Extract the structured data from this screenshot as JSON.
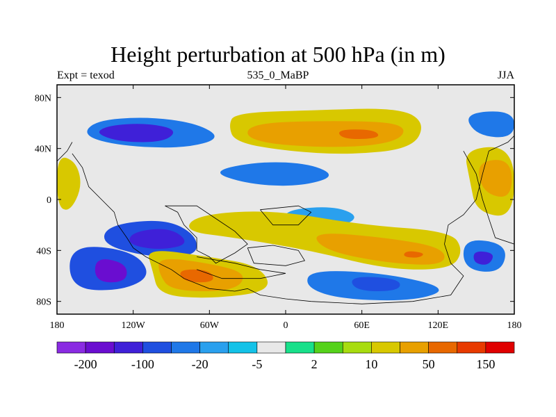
{
  "chart_data": {
    "type": "heatmap",
    "title": "Height perturbation at 500 hPa (in m)",
    "subtitle_left": "Expt = texod",
    "subtitle_center": "535_0_MaBP",
    "subtitle_right": "JJA",
    "x_ticks": [
      "180",
      "120W",
      "60W",
      "0",
      "60E",
      "120E",
      "180"
    ],
    "x_tick_values": [
      -180,
      -120,
      -60,
      0,
      60,
      120,
      180
    ],
    "y_ticks": [
      "80N",
      "40N",
      "0",
      "40S",
      "80S"
    ],
    "y_tick_values": [
      80,
      40,
      0,
      -40,
      -80
    ],
    "xlim": [
      -180,
      180
    ],
    "ylim": [
      -90,
      90
    ],
    "colorbar": {
      "colors": [
        "#8a2be2",
        "#6a0dd0",
        "#3f20d8",
        "#1f4fe0",
        "#1f78e8",
        "#2aa0ee",
        "#13c2e8",
        "#e8e8e8",
        "#18e08a",
        "#55d21a",
        "#a8dc0f",
        "#d8c800",
        "#e8a000",
        "#e86800",
        "#e83a00",
        "#e00000"
      ],
      "labels": [
        "-200",
        "-100",
        "-20",
        "-5",
        "2",
        "10",
        "50",
        "150"
      ]
    },
    "regions": [
      {
        "level": 4,
        "points": [
          [
            -150,
            62
          ],
          [
            -110,
            65
          ],
          [
            -70,
            60
          ],
          [
            -50,
            48
          ],
          [
            -80,
            40
          ],
          [
            -130,
            42
          ],
          [
            -160,
            50
          ]
        ]
      },
      {
        "level": 2,
        "points": [
          [
            -140,
            58
          ],
          [
            -110,
            60
          ],
          [
            -85,
            55
          ],
          [
            -95,
            45
          ],
          [
            -130,
            45
          ],
          [
            -150,
            52
          ]
        ]
      },
      {
        "level": 11,
        "points": [
          [
            -40,
            68
          ],
          [
            20,
            70
          ],
          [
            90,
            72
          ],
          [
            110,
            60
          ],
          [
            100,
            40
          ],
          [
            50,
            35
          ],
          [
            0,
            38
          ],
          [
            -40,
            45
          ],
          [
            -45,
            58
          ]
        ]
      },
      {
        "level": 12,
        "points": [
          [
            -30,
            60
          ],
          [
            40,
            62
          ],
          [
            95,
            60
          ],
          [
            90,
            45
          ],
          [
            40,
            40
          ],
          [
            -30,
            45
          ]
        ]
      },
      {
        "level": 13,
        "points": [
          [
            40,
            55
          ],
          [
            70,
            55
          ],
          [
            75,
            48
          ],
          [
            45,
            47
          ]
        ]
      },
      {
        "level": 4,
        "points": [
          [
            -60,
            22
          ],
          [
            -20,
            30
          ],
          [
            20,
            28
          ],
          [
            40,
            18
          ],
          [
            10,
            10
          ],
          [
            -30,
            12
          ]
        ]
      },
      {
        "level": 5,
        "points": [
          [
            0,
            -8
          ],
          [
            40,
            -5
          ],
          [
            60,
            -15
          ],
          [
            30,
            -25
          ],
          [
            0,
            -18
          ]
        ]
      },
      {
        "level": 11,
        "points": [
          [
            -70,
            -12
          ],
          [
            -10,
            -8
          ],
          [
            60,
            -20
          ],
          [
            130,
            -25
          ],
          [
            140,
            -40
          ],
          [
            130,
            -55
          ],
          [
            80,
            -55
          ],
          [
            20,
            -40
          ],
          [
            -40,
            -30
          ],
          [
            -80,
            -25
          ]
        ]
      },
      {
        "level": 12,
        "points": [
          [
            20,
            -25
          ],
          [
            80,
            -30
          ],
          [
            125,
            -38
          ],
          [
            125,
            -52
          ],
          [
            80,
            -50
          ],
          [
            30,
            -40
          ]
        ]
      },
      {
        "level": 13,
        "points": [
          [
            95,
            -40
          ],
          [
            110,
            -42
          ],
          [
            105,
            -46
          ],
          [
            92,
            -45
          ]
        ]
      },
      {
        "level": 3,
        "points": [
          [
            -140,
            -20
          ],
          [
            -95,
            -15
          ],
          [
            -70,
            -28
          ],
          [
            -70,
            -45
          ],
          [
            -110,
            -45
          ],
          [
            -145,
            -35
          ]
        ]
      },
      {
        "level": 2,
        "points": [
          [
            -120,
            -25
          ],
          [
            -90,
            -22
          ],
          [
            -75,
            -35
          ],
          [
            -100,
            -40
          ],
          [
            -125,
            -35
          ]
        ]
      },
      {
        "level": 3,
        "points": [
          [
            -170,
            -35
          ],
          [
            -120,
            -40
          ],
          [
            -105,
            -60
          ],
          [
            -130,
            -72
          ],
          [
            -170,
            -70
          ]
        ]
      },
      {
        "level": 1,
        "points": [
          [
            -150,
            -45
          ],
          [
            -125,
            -50
          ],
          [
            -125,
            -65
          ],
          [
            -150,
            -65
          ]
        ]
      },
      {
        "level": 11,
        "points": [
          [
            -110,
            -38
          ],
          [
            -60,
            -45
          ],
          [
            -20,
            -52
          ],
          [
            -10,
            -72
          ],
          [
            -60,
            -78
          ],
          [
            -100,
            -75
          ],
          [
            -105,
            -55
          ]
        ]
      },
      {
        "level": 12,
        "points": [
          [
            -100,
            -45
          ],
          [
            -60,
            -50
          ],
          [
            -30,
            -58
          ],
          [
            -40,
            -72
          ],
          [
            -90,
            -72
          ],
          [
            -100,
            -58
          ]
        ]
      },
      {
        "level": 13,
        "points": [
          [
            -85,
            -55
          ],
          [
            -60,
            -55
          ],
          [
            -55,
            -65
          ],
          [
            -80,
            -65
          ]
        ]
      },
      {
        "level": 4,
        "points": [
          [
            20,
            -55
          ],
          [
            80,
            -58
          ],
          [
            130,
            -70
          ],
          [
            100,
            -80
          ],
          [
            40,
            -78
          ],
          [
            15,
            -68
          ]
        ]
      },
      {
        "level": 3,
        "points": [
          [
            50,
            -60
          ],
          [
            90,
            -62
          ],
          [
            90,
            -72
          ],
          [
            55,
            -72
          ]
        ]
      },
      {
        "level": 11,
        "points": [
          [
            -180,
            35
          ],
          [
            -165,
            30
          ],
          [
            -160,
            10
          ],
          [
            -170,
            -10
          ],
          [
            -180,
            -5
          ]
        ]
      },
      {
        "level": 11,
        "points": [
          [
            140,
            40
          ],
          [
            180,
            42
          ],
          [
            180,
            -15
          ],
          [
            150,
            -10
          ],
          [
            145,
            15
          ]
        ]
      },
      {
        "level": 12,
        "points": [
          [
            150,
            30
          ],
          [
            178,
            32
          ],
          [
            178,
            0
          ],
          [
            155,
            5
          ]
        ]
      },
      {
        "level": 4,
        "points": [
          [
            140,
            68
          ],
          [
            180,
            70
          ],
          [
            180,
            48
          ],
          [
            150,
            50
          ]
        ]
      },
      {
        "level": 4,
        "points": [
          [
            140,
            -30
          ],
          [
            175,
            -35
          ],
          [
            170,
            -58
          ],
          [
            140,
            -55
          ]
        ]
      },
      {
        "level": 2,
        "points": [
          [
            148,
            -40
          ],
          [
            165,
            -42
          ],
          [
            160,
            -52
          ],
          [
            148,
            -50
          ]
        ]
      }
    ]
  }
}
